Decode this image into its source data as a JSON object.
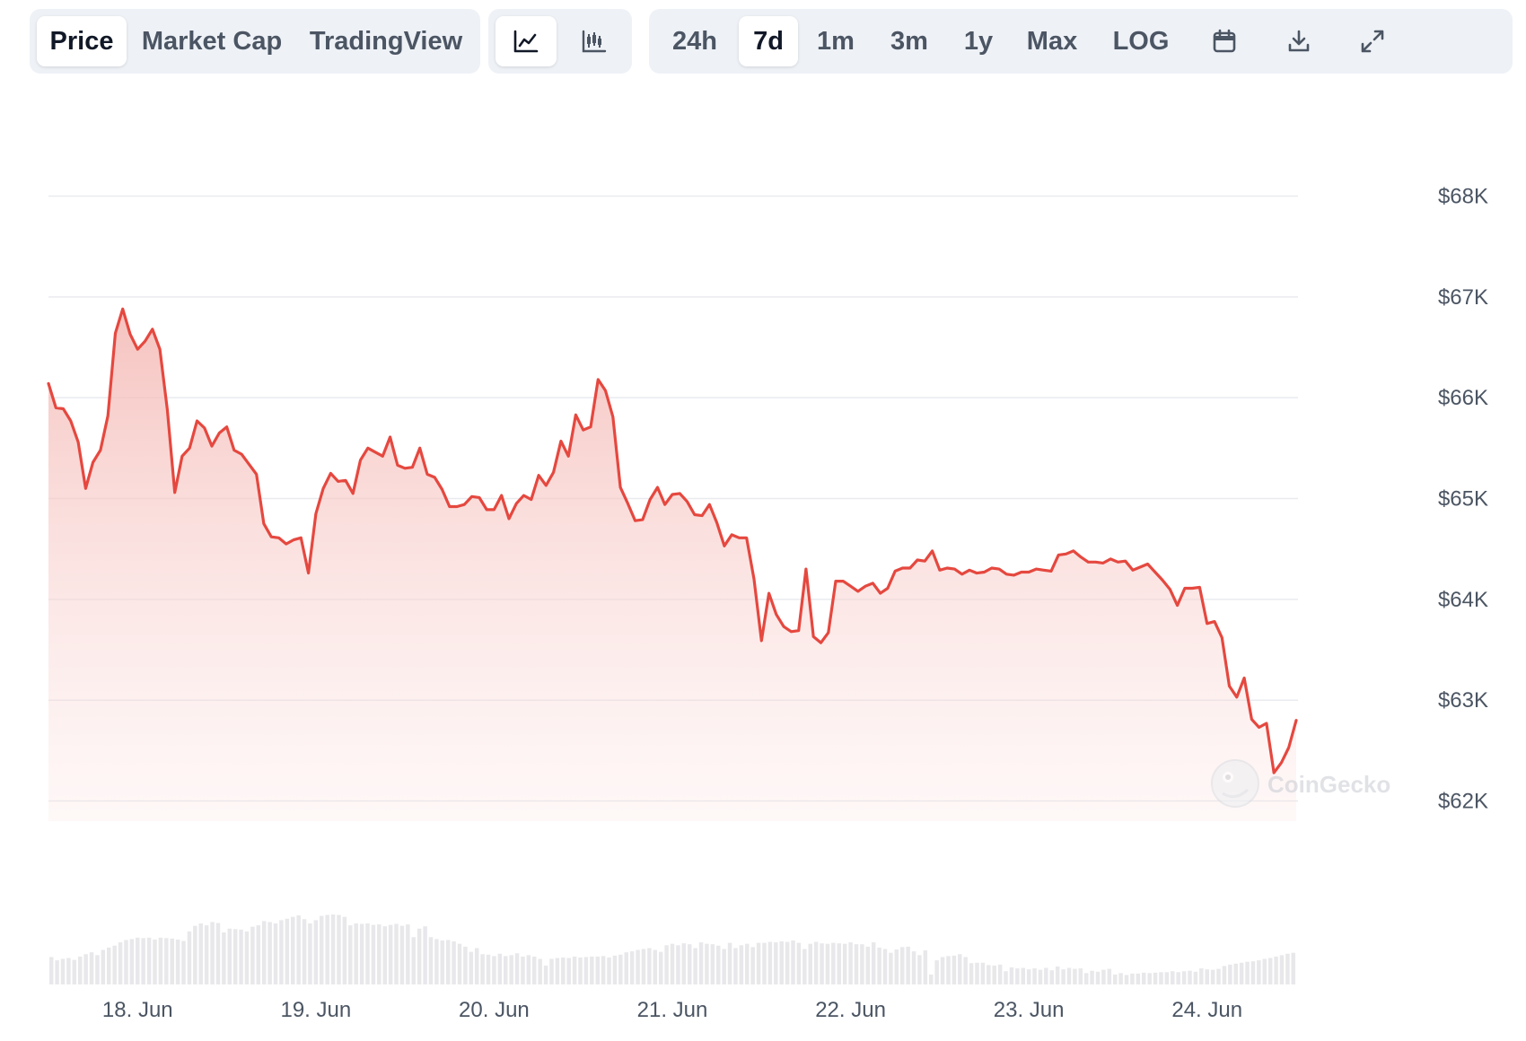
{
  "toolbar": {
    "tabs": [
      {
        "label": "Price",
        "active": true
      },
      {
        "label": "Market Cap",
        "active": false
      },
      {
        "label": "TradingView",
        "active": false
      }
    ],
    "chart_types": [
      {
        "icon": "line-chart-icon",
        "active": true
      },
      {
        "icon": "candlestick-chart-icon",
        "active": false
      }
    ],
    "ranges": [
      {
        "label": "24h",
        "active": false
      },
      {
        "label": "7d",
        "active": true
      },
      {
        "label": "1m",
        "active": false
      },
      {
        "label": "3m",
        "active": false
      },
      {
        "label": "1y",
        "active": false
      },
      {
        "label": "Max",
        "active": false
      }
    ],
    "log_label": "LOG",
    "actions": [
      "calendar-icon",
      "download-icon",
      "fullscreen-icon"
    ]
  },
  "watermark": "CoinGecko",
  "colors": {
    "line": "#e5483f",
    "fill": "#f8d3d1",
    "volume": "#e8e8eb",
    "grid": "#e9ebef",
    "toolbar_bg": "#eef1f6"
  },
  "chart_data": {
    "type": "area",
    "title": "",
    "xlabel": "",
    "ylabel": "",
    "ylim": [
      61800,
      68200
    ],
    "yticks": [
      62000,
      63000,
      64000,
      65000,
      66000,
      67000,
      68000
    ],
    "ytick_labels": [
      "$62K",
      "$63K",
      "$64K",
      "$65K",
      "$66K",
      "$67K",
      "$68K"
    ],
    "x_start_day": 17.5,
    "x_end_day": 24.5,
    "xticks": [
      18,
      19,
      20,
      21,
      22,
      23,
      24
    ],
    "xtick_labels": [
      "18. Jun",
      "19. Jun",
      "20. Jun",
      "21. Jun",
      "22. Jun",
      "23. Jun",
      "24. Jun"
    ],
    "grid": true,
    "series": [
      {
        "kind": "price",
        "values": [
          66140,
          65900,
          65890,
          65770,
          65560,
          65100,
          65360,
          65480,
          65820,
          66640,
          66880,
          66630,
          66480,
          66560,
          66680,
          66480,
          65880,
          65060,
          65420,
          65500,
          65770,
          65700,
          65520,
          65650,
          65710,
          65480,
          65440,
          65340,
          65240,
          64750,
          64620,
          64610,
          64550,
          64590,
          64610,
          64260,
          64850,
          65100,
          65250,
          65170,
          65180,
          65050,
          65380,
          65500,
          65460,
          65420,
          65610,
          65330,
          65300,
          65310,
          65500,
          65240,
          65210,
          65090,
          64920,
          64920,
          64940,
          65020,
          65010,
          64890,
          64890,
          65030,
          64800,
          64950,
          65030,
          64990,
          65230,
          65130,
          65260,
          65570,
          65420,
          65830,
          65680,
          65710,
          66180,
          66070,
          65810,
          65110,
          64950,
          64780,
          64790,
          64990,
          65110,
          64940,
          65040,
          65050,
          64970,
          64840,
          64830,
          64940,
          64760,
          64530,
          64640,
          64610,
          64610,
          64200,
          63590,
          64060,
          63850,
          63730,
          63680,
          63690,
          64300,
          63630,
          63570,
          63670,
          64180,
          64180,
          64130,
          64080,
          64130,
          64160,
          64060,
          64110,
          64280,
          64310,
          64310,
          64390,
          64380,
          64480,
          64290,
          64310,
          64300,
          64250,
          64290,
          64260,
          64270,
          64310,
          64300,
          64250,
          64240,
          64270,
          64270,
          64300,
          64290,
          64280,
          64440,
          64450,
          64480,
          64420,
          64370,
          64370,
          64360,
          64400,
          64370,
          64380,
          64290,
          64320,
          64350,
          64270,
          64190,
          64100,
          63940,
          64110,
          64110,
          64120,
          63760,
          63780,
          63620,
          63140,
          63030,
          63220,
          62810,
          62730,
          62770,
          62280,
          62380,
          62530,
          62800
        ]
      },
      {
        "kind": "volume",
        "values": [
          5.8,
          5.1,
          5.4,
          5.6,
          5.2,
          5.9,
          6.4,
          6.8,
          6.2,
          7.3,
          7.8,
          8.2,
          8.9,
          9.4,
          9.6,
          9.9,
          9.8,
          9.9,
          9.5,
          9.9,
          9.8,
          9.7,
          9.5,
          9.2,
          11.2,
          12.4,
          12.9,
          12.5,
          13.2,
          13.0,
          11.0,
          11.8,
          11.7,
          11.6,
          11.2,
          12.2,
          12.5,
          13.4,
          13.2,
          12.9,
          13.6,
          13.9,
          14.3,
          14.6,
          13.8,
          12.9,
          13.6,
          14.5,
          14.7,
          14.8,
          14.7,
          14.3,
          12.5,
          12.9,
          12.8,
          12.9,
          12.6,
          12.7,
          12.3,
          12.6,
          12.8,
          12.4,
          12.7,
          10.0,
          11.8,
          12.3,
          10.0,
          9.6,
          9.3,
          9.4,
          9.1,
          8.6,
          8.0,
          6.9,
          7.7,
          6.4,
          6.3,
          6.0,
          6.5,
          6.0,
          6.2,
          6.6,
          5.9,
          6.2,
          5.9,
          5.4,
          4.0,
          5.4,
          5.6,
          5.7,
          5.6,
          5.9,
          5.7,
          5.8,
          5.9,
          5.9,
          6.0,
          5.7,
          6.1,
          6.3,
          6.8,
          7.0,
          7.3,
          7.5,
          7.7,
          7.3,
          6.9,
          8.3,
          8.6,
          8.3,
          8.7,
          8.5,
          7.7,
          8.9,
          8.6,
          8.5,
          8.2,
          7.5,
          8.8,
          7.7,
          8.3,
          8.6,
          7.9,
          8.8,
          8.8,
          9.0,
          8.9,
          9.1,
          9.0,
          9.3,
          8.8,
          7.5,
          8.6,
          9.0,
          8.7,
          8.6,
          8.8,
          8.7,
          8.6,
          8.9,
          8.5,
          8.5,
          8.0,
          8.9,
          7.8,
          7.5,
          6.7,
          7.4,
          7.9,
          8.0,
          7.0,
          6.2,
          7.2,
          2.1,
          5.1,
          5.8,
          6.0,
          6.1,
          6.4,
          5.8,
          4.5,
          4.6,
          4.6,
          4.1,
          4.0,
          4.2,
          2.8,
          3.6,
          3.4,
          3.5,
          3.2,
          3.4,
          3.1,
          3.5,
          3.0,
          3.8,
          3.2,
          3.5,
          3.3,
          3.4,
          2.4,
          2.9,
          2.7,
          3.1,
          3.3,
          2.1,
          2.4,
          2.0,
          2.3,
          2.3,
          2.5,
          2.4,
          2.5,
          2.6,
          2.6,
          2.8,
          2.6,
          2.8,
          2.9,
          2.7,
          3.4,
          3.2,
          3.1,
          3.3,
          3.9,
          4.2,
          4.4,
          4.6,
          4.8,
          4.9,
          5.1,
          5.4,
          5.6,
          5.9,
          6.2,
          6.5,
          6.7
        ]
      }
    ]
  }
}
